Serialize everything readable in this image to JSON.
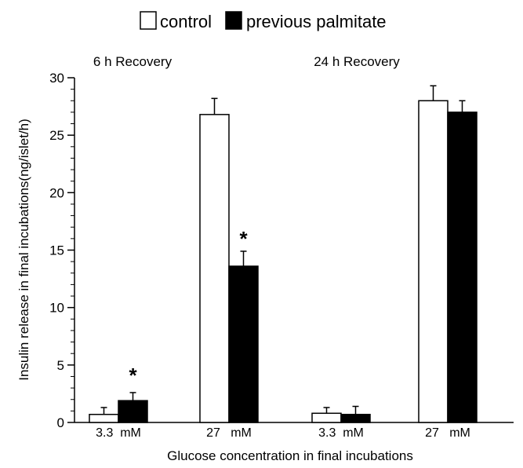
{
  "chart_data": {
    "type": "bar",
    "title": "",
    "xlabel": "Glucose concentration in final incubations",
    "ylabel": "Insulin release in final incubations(ng/islet/h)",
    "ylim": [
      0,
      30
    ],
    "yticks": [
      0,
      5,
      10,
      15,
      20,
      25,
      30
    ],
    "grid": false,
    "legend_position": "top-center",
    "categories": [
      "3.3  mM",
      "27   mM",
      "3.3  mM",
      "27   mM"
    ],
    "panels": [
      "6 h Recovery",
      "24 h Recovery"
    ],
    "series": [
      {
        "name": "control",
        "color": "#ffffff",
        "values": [
          0.7,
          26.8,
          0.8,
          28.0
        ],
        "errors": [
          0.6,
          1.4,
          0.5,
          1.3
        ]
      },
      {
        "name": "previous palmitate",
        "color": "#000000",
        "values": [
          1.9,
          13.6,
          0.7,
          27.0
        ],
        "errors": [
          0.7,
          1.3,
          0.7,
          1.0
        ]
      }
    ],
    "annotations": [
      {
        "text": "*",
        "category_index": 0,
        "series": "previous palmitate",
        "y": 4.3
      },
      {
        "text": "*",
        "category_index": 1,
        "series": "previous palmitate",
        "y": 16.2
      }
    ]
  }
}
